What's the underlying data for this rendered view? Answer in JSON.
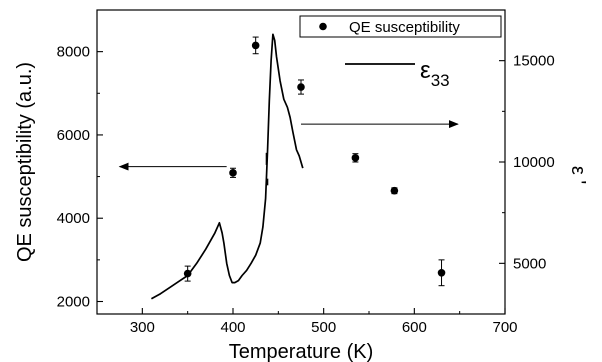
{
  "chart_data": {
    "type": "scatter",
    "xlabel": "Temperature (K)",
    "ylabel_left": "QE susceptibility (a.u.)",
    "ylabel_right": "ε '",
    "xlim": [
      250,
      700
    ],
    "ylim_left": [
      1700,
      9000
    ],
    "ylim_right": [
      2500,
      17500
    ],
    "x_ticks": [
      300,
      400,
      500,
      600,
      700
    ],
    "y_left_ticks": [
      2000,
      4000,
      6000,
      8000
    ],
    "y_right_ticks": [
      5000,
      10000,
      15000
    ],
    "legend": {
      "placement": "top-right",
      "scatter_label": "QE susceptibility",
      "line_label_base": "ε",
      "line_label_sub": "33"
    },
    "series": [
      {
        "name": "QE susceptibility",
        "kind": "scatter",
        "axis": "left",
        "color": "#000000",
        "points": [
          {
            "x": 350,
            "y": 2670,
            "err": 180
          },
          {
            "x": 400,
            "y": 5090,
            "err": 110
          },
          {
            "x": 425,
            "y": 8150,
            "err": 200
          },
          {
            "x": 475,
            "y": 7150,
            "err": 170
          },
          {
            "x": 535,
            "y": 5450,
            "err": 100
          },
          {
            "x": 578,
            "y": 4660,
            "err": 70
          },
          {
            "x": 630,
            "y": 2690,
            "err": 310
          }
        ]
      },
      {
        "name": "ε33",
        "kind": "line",
        "axis": "right",
        "color": "#000000",
        "x": [
          310,
          320,
          330,
          340,
          350,
          360,
          370,
          380,
          385,
          388,
          390,
          393,
          396,
          399,
          402,
          406,
          410,
          415,
          420,
          425,
          430,
          433,
          436,
          438,
          440,
          442,
          444,
          446,
          448,
          452,
          456,
          460,
          463,
          466,
          470,
          473,
          477
        ],
        "y": [
          3250,
          3500,
          3800,
          4100,
          4400,
          5000,
          5700,
          6500,
          7000,
          6500,
          6000,
          5000,
          4400,
          4050,
          4050,
          4150,
          4400,
          4650,
          5000,
          5400,
          6000,
          6800,
          8200,
          10500,
          13000,
          15000,
          16300,
          16000,
          15200,
          14000,
          13100,
          12700,
          12200,
          11500,
          10600,
          10300,
          9700
        ]
      }
    ],
    "annotations": [
      {
        "type": "arrow",
        "direction": "left",
        "x_from": 393,
        "x_to": 275,
        "y_left": 5240
      },
      {
        "type": "arrow",
        "direction": "right",
        "x_from": 475,
        "x_to": 648,
        "y_left": 6260
      },
      {
        "type": "tick-mark",
        "x": 437,
        "y_left_from": 5570,
        "y_left_to": 5280
      },
      {
        "type": "tick-mark",
        "x": 438,
        "y_left_from": 4950,
        "y_left_to": 4790
      }
    ]
  }
}
